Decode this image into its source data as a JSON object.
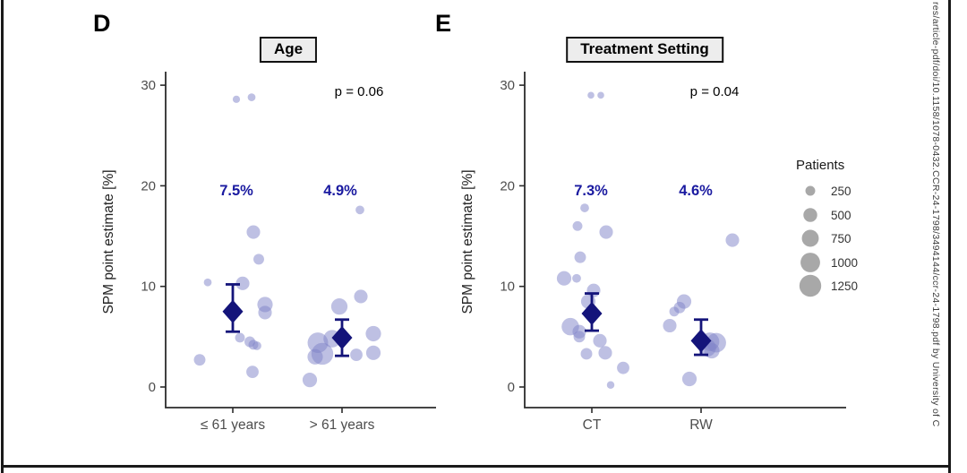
{
  "chart_data": [
    {
      "type": "scatter",
      "panel_label": "D",
      "title": "Age",
      "p_label": "p = 0.06",
      "ylabel": "SPM point estimate [%]",
      "ylim": [
        -1.5,
        31.5
      ],
      "yticks": [
        0,
        10,
        20,
        30
      ],
      "point_format": [
        "x_offset_px",
        "value_percent",
        "patients"
      ],
      "groups": [
        {
          "label": "≤ 61 years",
          "estimate_label": "7.5%",
          "estimate": 7.5,
          "ci": [
            5.5,
            10.2
          ],
          "points": [
            [
              4,
              28.6,
              140
            ],
            [
              21,
              28.8,
              160
            ],
            [
              23,
              15.4,
              480
            ],
            [
              29,
              12.7,
              300
            ],
            [
              -28,
              10.4,
              160
            ],
            [
              11,
              10.3,
              480
            ],
            [
              36,
              8.2,
              620
            ],
            [
              36,
              7.4,
              480
            ],
            [
              8,
              4.9,
              250
            ],
            [
              19,
              4.5,
              300
            ],
            [
              23,
              4.2,
              250
            ],
            [
              27,
              4.1,
              200
            ],
            [
              -37,
              2.7,
              350
            ],
            [
              22,
              1.5,
              400
            ]
          ]
        },
        {
          "label": "> 61 years",
          "estimate_label": "4.9%",
          "estimate": 4.9,
          "ci": [
            3.1,
            6.7
          ],
          "points": [
            [
              20,
              17.6,
              200
            ],
            [
              21,
              9.0,
              480
            ],
            [
              -3,
              8.0,
              700
            ],
            [
              35,
              5.3,
              620
            ],
            [
              -11,
              4.8,
              800
            ],
            [
              -27,
              4.4,
              1100
            ],
            [
              -22,
              3.3,
              1250
            ],
            [
              -30,
              3.0,
              620
            ],
            [
              16,
              3.2,
              400
            ],
            [
              35,
              3.4,
              550
            ],
            [
              -36,
              0.7,
              550
            ]
          ]
        }
      ]
    },
    {
      "type": "scatter",
      "panel_label": "E",
      "title": "Treatment Setting",
      "p_label": "p = 0.04",
      "ylabel": "SPM point estimate [%]",
      "ylim": [
        -1.5,
        31.5
      ],
      "yticks": [
        0,
        10,
        20,
        30
      ],
      "point_format": [
        "x_offset_px",
        "value_percent",
        "patients"
      ],
      "groups": [
        {
          "label": "CT",
          "estimate_label": "7.3%",
          "estimate": 7.3,
          "ci": [
            5.6,
            9.3
          ],
          "points": [
            [
              -1,
              29.0,
              120
            ],
            [
              10,
              29.0,
              120
            ],
            [
              -8,
              17.8,
              200
            ],
            [
              -16,
              16.0,
              250
            ],
            [
              16,
              15.4,
              480
            ],
            [
              -13,
              12.9,
              350
            ],
            [
              -31,
              10.8,
              550
            ],
            [
              -17,
              10.8,
              200
            ],
            [
              2,
              9.6,
              480
            ],
            [
              -4,
              8.5,
              550
            ],
            [
              -24,
              6.0,
              800
            ],
            [
              -14,
              5.5,
              480
            ],
            [
              -14,
              5.0,
              350
            ],
            [
              9,
              4.6,
              480
            ],
            [
              -6,
              3.3,
              350
            ],
            [
              15,
              3.4,
              480
            ],
            [
              35,
              1.9,
              400
            ],
            [
              21,
              0.2,
              150
            ]
          ]
        },
        {
          "label": "RW",
          "estimate_label": "4.6%",
          "estimate": 4.6,
          "ci": [
            3.2,
            6.7
          ],
          "points": [
            [
              35,
              14.6,
              480
            ],
            [
              -19,
              8.5,
              550
            ],
            [
              -24,
              7.9,
              350
            ],
            [
              -30,
              7.5,
              250
            ],
            [
              -35,
              6.1,
              480
            ],
            [
              10,
              4.5,
              900
            ],
            [
              17,
              4.4,
              1000
            ],
            [
              7,
              3.9,
              800
            ],
            [
              12,
              3.6,
              620
            ],
            [
              -13,
              0.8,
              550
            ]
          ]
        }
      ]
    }
  ],
  "legend": {
    "title": "Patients",
    "sizes": [
      250,
      500,
      750,
      1000,
      1250
    ]
  },
  "watermark_text": "res/article-pdf/doi/10.1158/1078-0432.CCR-24-1798/3494144/ccr-24-1798.pdf by University of C",
  "colors": {
    "bubble": "#7d82c8",
    "summary": "#14147a",
    "estimate_text": "#1a1aa0",
    "axis": "#2b2b2b",
    "tick_text": "#4d4d4d",
    "legend_circle": "#a8a8a8",
    "title_box_bg": "#ededed"
  }
}
